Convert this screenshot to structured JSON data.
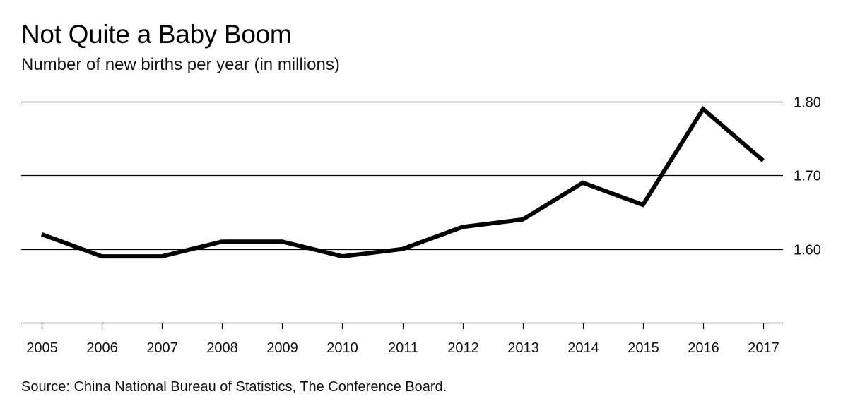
{
  "chart_data": {
    "type": "line",
    "title": "Not Quite a Baby Boom",
    "subtitle": "Number of new births per year (in millions)",
    "source": "Source: China National Bureau of Statistics, The Conference Board.",
    "xlabel": "",
    "ylabel": "",
    "x": [
      2005,
      2006,
      2007,
      2008,
      2009,
      2010,
      2011,
      2012,
      2013,
      2014,
      2015,
      2016,
      2017
    ],
    "series": [
      {
        "name": "New births (millions)",
        "values": [
          1.62,
          1.59,
          1.59,
          1.61,
          1.61,
          1.59,
          1.6,
          1.63,
          1.64,
          1.69,
          1.66,
          1.79,
          1.72
        ]
      }
    ],
    "ylim": [
      1.5,
      1.8
    ],
    "yticks": [
      1.6,
      1.7,
      1.8
    ],
    "ytick_labels": [
      "1.60",
      "1.70",
      "1.80"
    ],
    "xtick_labels": [
      "2005",
      "2006",
      "2007",
      "2008",
      "2009",
      "2010",
      "2011",
      "2012",
      "2013",
      "2014",
      "2015",
      "2016",
      "2017"
    ],
    "grid": "horizontal",
    "line_color": "#000000",
    "grid_color": "#000000"
  }
}
